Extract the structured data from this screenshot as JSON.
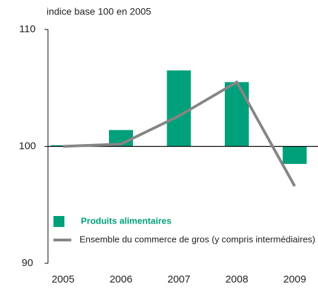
{
  "chart_data": {
    "type": "bar",
    "y_axis_label": "indice base 100 en 2005",
    "categories": [
      "2005",
      "2006",
      "2007",
      "2008",
      "2009"
    ],
    "series": [
      {
        "name": "Produits alimentaires",
        "type": "bar",
        "color": "#00a07a",
        "values": [
          100.1,
          101.4,
          106.5,
          105.5,
          98.5
        ]
      },
      {
        "name": "Ensemble du commerce de gros (y compris intermédiaires)",
        "type": "line",
        "color": "#858585",
        "values": [
          100.0,
          100.2,
          102.6,
          105.5,
          96.6
        ]
      }
    ],
    "ylim": [
      90,
      110
    ],
    "yticks": [
      90,
      100,
      110
    ],
    "baseline": 100,
    "legend": "lower left"
  }
}
